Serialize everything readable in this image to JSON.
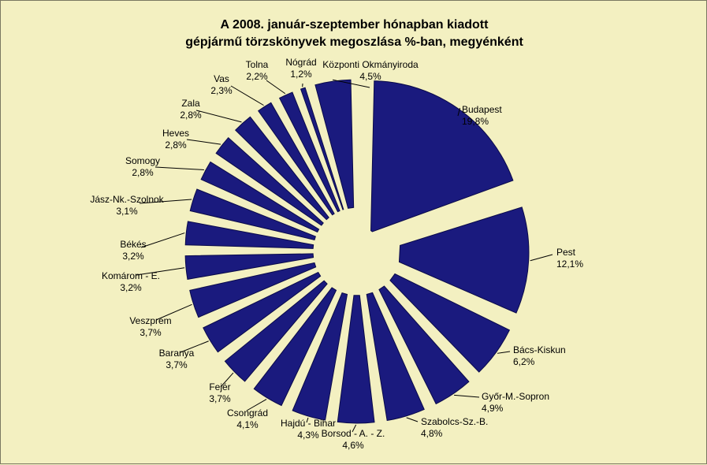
{
  "chart_data": {
    "type": "pie",
    "title_line1": "A  2008. január-szeptember hónapban kiadott",
    "title_line2": "gépjármű törzskönyvek megoszlása %-ban, megyénként",
    "slices": [
      {
        "label": "Budapest",
        "value": 19.8,
        "value_text": "19,8%"
      },
      {
        "label": "Pest",
        "value": 12.1,
        "value_text": "12,1%"
      },
      {
        "label": "Bács-Kiskun",
        "value": 6.2,
        "value_text": "6,2%"
      },
      {
        "label": "Győr-M.-Sopron",
        "value": 4.9,
        "value_text": "4,9%"
      },
      {
        "label": "Szabolcs-Sz.-B.",
        "value": 4.8,
        "value_text": "4,8%"
      },
      {
        "label": "Borsod - A. - Z.",
        "value": 4.6,
        "value_text": "4,6%"
      },
      {
        "label": "Hajdú - Bihar",
        "value": 4.3,
        "value_text": "4,3%"
      },
      {
        "label": "Csongrád",
        "value": 4.1,
        "value_text": "4,1%"
      },
      {
        "label": "Fejér",
        "value": 3.7,
        "value_text": "3,7%"
      },
      {
        "label": "Baranya",
        "value": 3.7,
        "value_text": "3,7%"
      },
      {
        "label": "Veszprém",
        "value": 3.7,
        "value_text": "3,7%"
      },
      {
        "label": "Komárom - E.",
        "value": 3.2,
        "value_text": "3,2%"
      },
      {
        "label": "Békés",
        "value": 3.2,
        "value_text": "3,2%"
      },
      {
        "label": "Jász-Nk.-Szolnok",
        "value": 3.1,
        "value_text": "3,1%"
      },
      {
        "label": "Somogy",
        "value": 2.8,
        "value_text": "2,8%"
      },
      {
        "label": "Heves",
        "value": 2.8,
        "value_text": "2,8%"
      },
      {
        "label": "Zala",
        "value": 2.8,
        "value_text": "2,8%"
      },
      {
        "label": "Vas",
        "value": 2.3,
        "value_text": "2,3%"
      },
      {
        "label": "Tolna",
        "value": 2.2,
        "value_text": "2,2%"
      },
      {
        "label": "Nógrád",
        "value": 1.2,
        "value_text": "1,2%"
      },
      {
        "label": "Központi Okmányiroda",
        "value": 4.5,
        "value_text": "4,5%"
      }
    ],
    "colors": {
      "background": "#f3f0c1",
      "slice_fill": "#1a1a7e",
      "slice_stroke": "#0a0a4a"
    },
    "exploded": true,
    "legend": "none"
  }
}
